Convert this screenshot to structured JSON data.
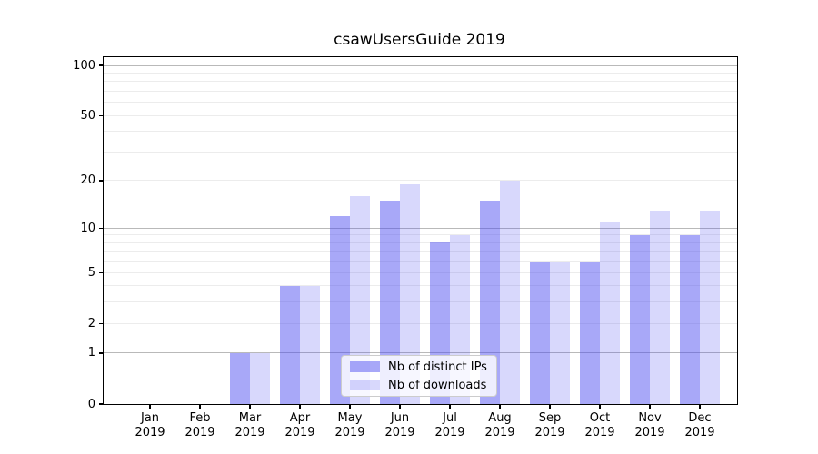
{
  "chart_data": {
    "type": "bar",
    "title": "csawUsersGuide 2019",
    "categories": [
      "Jan 2019",
      "Feb 2019",
      "Mar 2019",
      "Apr 2019",
      "May 2019",
      "Jun 2019",
      "Jul 2019",
      "Aug 2019",
      "Sep 2019",
      "Oct 2019",
      "Nov 2019",
      "Dec 2019"
    ],
    "series": [
      {
        "name": "Nb of distinct IPs",
        "color": "rgba(70,70,240,0.47)",
        "values": [
          0,
          0,
          1,
          4,
          12,
          15,
          8,
          15,
          6,
          6,
          9,
          9
        ]
      },
      {
        "name": "Nb of downloads",
        "color": "rgba(70,70,240,0.21)",
        "values": [
          0,
          0,
          1,
          4,
          16,
          19,
          9,
          20,
          6,
          11,
          13,
          13
        ]
      }
    ],
    "xlabel": "",
    "ylabel": "",
    "yscale": "log1p",
    "ylim": [
      0,
      112
    ],
    "yticks": [
      0,
      1,
      2,
      5,
      10,
      20,
      50,
      100
    ],
    "grid": {
      "minor_lines": [
        2,
        3,
        4,
        5,
        6,
        7,
        8,
        9,
        20,
        30,
        40,
        50,
        60,
        70,
        80,
        90
      ],
      "major_lines": [
        1,
        10,
        100
      ],
      "minor_color": "#ececec",
      "major_color": "#b9b9b9"
    },
    "legend": {
      "position": "lower center"
    }
  }
}
